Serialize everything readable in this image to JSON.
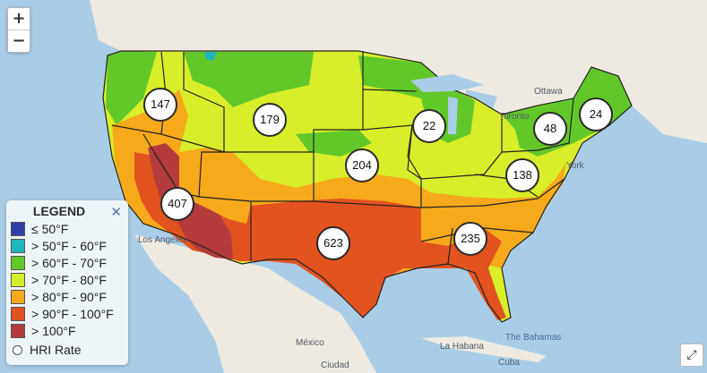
{
  "zoom": {
    "in_label": "+",
    "out_label": "−"
  },
  "legend": {
    "title": "LEGEND",
    "close_label": "✕",
    "items": [
      {
        "label": "≤ 50°F",
        "color": "#2d3ea6"
      },
      {
        "label": "> 50°F - 60°F",
        "color": "#1fb5bf"
      },
      {
        "label": "> 60°F - 70°F",
        "color": "#62c82a"
      },
      {
        "label": "> 70°F - 80°F",
        "color": "#d8ee2a"
      },
      {
        "label": "> 80°F - 90°F",
        "color": "#f6a91b"
      },
      {
        "label": "> 90°F - 100°F",
        "color": "#e25320"
      },
      {
        "label": "> 100°F",
        "color": "#b33b3b"
      }
    ],
    "hri_label": "HRI Rate"
  },
  "clusters": [
    {
      "label": "147"
    },
    {
      "label": "179"
    },
    {
      "label": "22"
    },
    {
      "label": "24"
    },
    {
      "label": "48"
    },
    {
      "label": "204"
    },
    {
      "label": "138"
    },
    {
      "label": "407"
    },
    {
      "label": "623"
    },
    {
      "label": "235"
    }
  ],
  "places": {
    "ottawa": "Ottawa",
    "toronto": "Toronto",
    "york": "York",
    "los_angeles": "Los Angeles",
    "mexico": "México",
    "la_habana": "La Habana",
    "the_bahamas": "The Bahamas",
    "cuba": "Cuba",
    "ciudad": "Ciudad"
  },
  "controls": {
    "fullscreen_icon": "⤢"
  },
  "colors": {
    "water": "#a9cde6",
    "land": "#efeae1",
    "border": "#222222"
  }
}
